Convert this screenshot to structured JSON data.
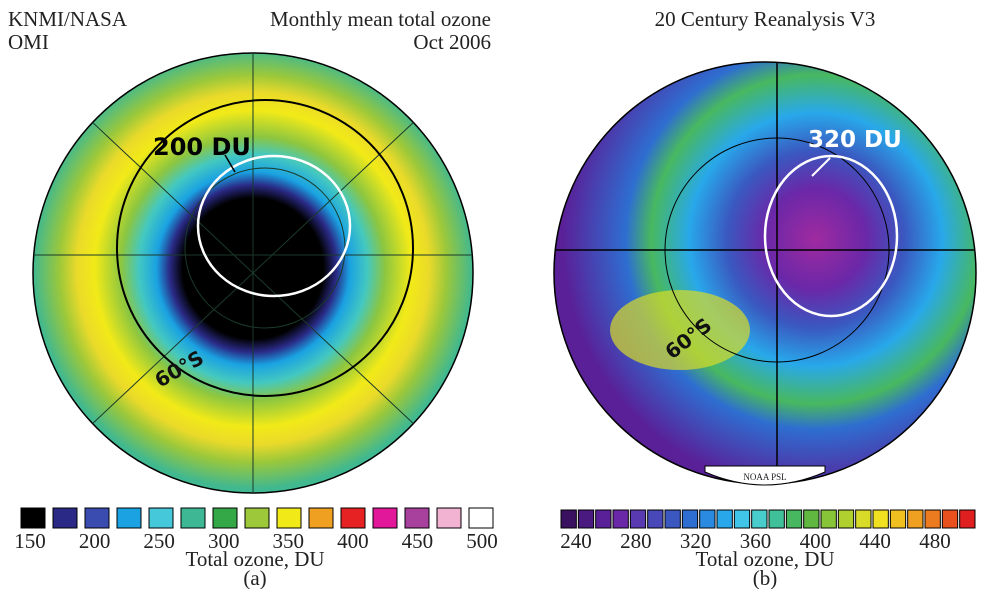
{
  "panel_a": {
    "source_line1": "KNMI/NASA",
    "source_line2": "OMI",
    "title_line1": "Monthly mean total ozone",
    "title_line2": "Oct 2006",
    "contour_label": "200 DU",
    "latitude_label": "60°S",
    "colorbar": {
      "colors": [
        "#000000",
        "#2a2a86",
        "#3a4cb0",
        "#1aa2e2",
        "#44c8da",
        "#3eb894",
        "#34a846",
        "#9cc83a",
        "#f2ea18",
        "#f0a020",
        "#e62222",
        "#e2189a",
        "#a8409e",
        "#f2b2d2",
        "#ffffff"
      ],
      "ticks": [
        150,
        200,
        250,
        300,
        350,
        400,
        450,
        500
      ],
      "label": "Total ozone, DU"
    },
    "caption": "(a)"
  },
  "panel_b": {
    "title": "20 Century Reanalysis V3",
    "contour_label": "320 DU",
    "latitude_label": "60°S",
    "credit": "NOAA PSL",
    "colorbar": {
      "colors": [
        "#3a1060",
        "#4a1a80",
        "#5a2098",
        "#6a28a8",
        "#5a3ab0",
        "#4848b8",
        "#3a58c0",
        "#2e6ed0",
        "#2a8ae0",
        "#28a8ea",
        "#40c4e8",
        "#48cccc",
        "#40c098",
        "#48b860",
        "#60b840",
        "#88c438",
        "#b0d030",
        "#d8dc28",
        "#f0e020",
        "#f0c020",
        "#f0a020",
        "#ec7a1e",
        "#e8501e",
        "#e02020"
      ],
      "ticks": [
        240,
        280,
        320,
        360,
        400,
        440,
        480
      ],
      "label": "Total ozone, DU"
    },
    "caption": "(b)"
  }
}
